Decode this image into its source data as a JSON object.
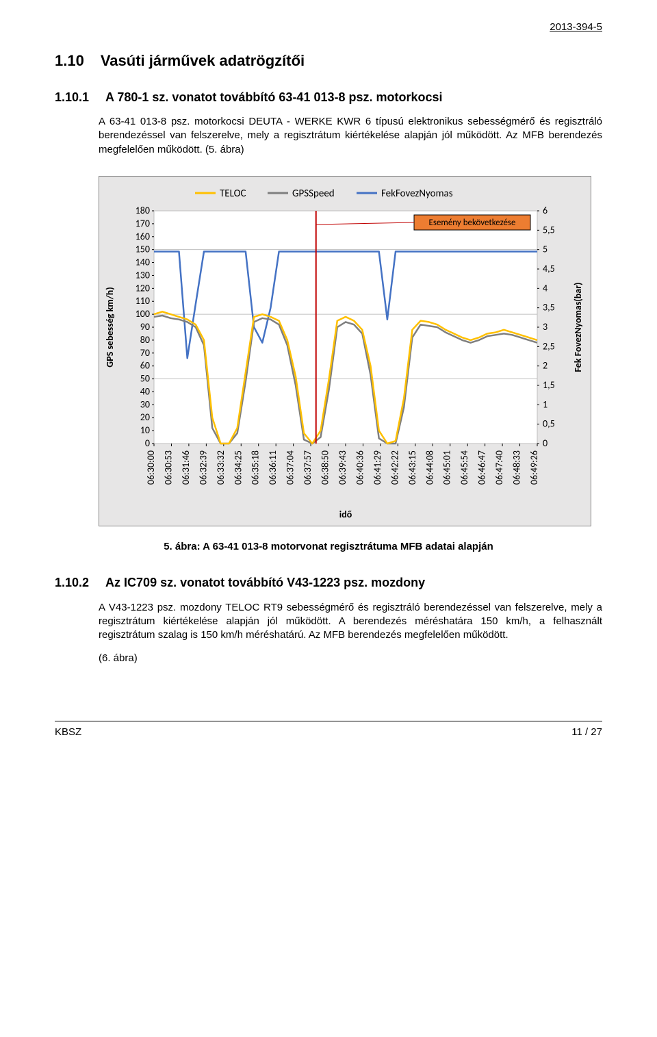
{
  "doc_id": "2013-394-5",
  "section_1_10": {
    "number": "1.10",
    "title": "Vasúti járművek adatrögzítői"
  },
  "section_1_10_1": {
    "number": "1.10.1",
    "title": "A 780-1 sz. vonatot továbbító 63-41 013-8 psz. motorkocsi",
    "body": "A 63-41 013-8 psz. motorkocsi DEUTA - WERKE KWR 6 típusú elektronikus sebességmérő és regisztráló berendezéssel van felszerelve, mely a regisztrátum kiértékelése alapján jól működött. Az MFB berendezés megfelelően működött. (5. ábra)"
  },
  "chart": {
    "bg_color": "#e7e6e6",
    "plot_bg": "#ffffff",
    "grid_color": "#bfbfbf",
    "border_color": "#888888",
    "font_color": "#000000",
    "legend": {
      "teloc": {
        "label": "TELOC",
        "color": "#ffc000"
      },
      "gps": {
        "label": "GPSSpeed",
        "color": "#7f7f7f"
      },
      "fek": {
        "label": "FekFovezNyomas",
        "color": "#4472c4"
      }
    },
    "event_label": "Esemény bekövetkezése",
    "event_box": {
      "bg": "#ed7d31",
      "border": "#000000",
      "text": "#000000"
    },
    "event_line_color": "#c00000",
    "y_left": {
      "label": "GPS sebesség km/h)",
      "min": 0,
      "max": 180,
      "step": 10,
      "ticks": [
        0,
        10,
        20,
        30,
        40,
        50,
        60,
        70,
        80,
        90,
        100,
        110,
        120,
        130,
        140,
        150,
        160,
        170,
        180
      ]
    },
    "y_right": {
      "label": "Fek FovezNyomas(bar)",
      "min": 0,
      "max": 6,
      "step": 0.5,
      "ticks": [
        "0",
        "0,5",
        "1",
        "1,5",
        "2",
        "2,5",
        "3",
        "3,5",
        "4",
        "4,5",
        "5",
        "5,5",
        "6"
      ]
    },
    "x": {
      "label": "idő",
      "ticks": [
        "06:30:00",
        "06:30:53",
        "06:31:46",
        "06:32:39",
        "06:33:32",
        "06:34:25",
        "06:35:18",
        "06:36:11",
        "06:37:04",
        "06:37:57",
        "06:38:50",
        "06:39:43",
        "06:40:36",
        "06:41:29",
        "06:42:22",
        "06:43:15",
        "06:44:08",
        "06:45:01",
        "06:45:54",
        "06:46:47",
        "06:47:40",
        "06:48:33",
        "06:49:26"
      ]
    },
    "event_x_index": 9.3,
    "series": {
      "teloc": [
        100,
        102,
        100,
        98,
        96,
        92,
        80,
        20,
        0,
        0,
        12,
        55,
        98,
        100,
        98,
        95,
        80,
        52,
        8,
        0,
        10,
        50,
        95,
        98,
        95,
        88,
        60,
        10,
        0,
        2,
        35,
        88,
        95,
        94,
        92,
        88,
        85,
        82,
        80,
        82,
        85,
        86,
        88,
        86,
        84,
        82,
        80
      ],
      "gps": [
        98,
        99,
        97,
        96,
        94,
        90,
        76,
        12,
        0,
        0,
        8,
        48,
        94,
        97,
        96,
        92,
        76,
        45,
        3,
        0,
        5,
        42,
        90,
        94,
        92,
        85,
        53,
        4,
        0,
        0,
        28,
        82,
        92,
        91,
        90,
        86,
        83,
        80,
        78,
        80,
        83,
        84,
        85,
        84,
        82,
        80,
        78
      ],
      "fek": [
        4.95,
        4.95,
        4.95,
        4.95,
        2.2,
        3.6,
        4.95,
        4.95,
        4.95,
        4.95,
        4.95,
        4.95,
        3.0,
        2.6,
        3.5,
        4.95,
        4.95,
        4.95,
        4.95,
        4.95,
        4.95,
        4.95,
        4.95,
        4.95,
        4.95,
        4.95,
        4.95,
        4.95,
        3.2,
        4.95,
        4.95,
        4.95,
        4.95,
        4.95,
        4.95,
        4.95,
        4.95,
        4.95,
        4.95,
        4.95,
        4.95,
        4.95,
        4.95,
        4.95,
        4.95,
        4.95,
        4.95
      ]
    },
    "line_width": {
      "teloc": 2.5,
      "gps": 2.5,
      "fek": 2.5,
      "event": 2
    },
    "label_fontsize": 14,
    "tick_fontsize": 14,
    "legend_fontsize": 15
  },
  "fig5_caption": "5. ábra: A 63-41 013-8 motorvonat regisztrátuma MFB adatai alapján",
  "section_1_10_2": {
    "number": "1.10.2",
    "title": "Az IC709 sz. vonatot továbbító V43-1223 psz. mozdony",
    "body": "A V43-1223 psz. mozdony TELOC RT9 sebességmérő és regisztráló berendezéssel van felszerelve, mely a regisztrátum kiértékelése alapján jól működött. A berendezés méréshatára 150 km/h, a felhasznált regisztrátum szalag is 150 km/h méréshatárú. Az MFB berendezés megfelelően működött.",
    "body2": "(6. ábra)"
  },
  "footer": {
    "left": "KBSZ",
    "right": "11 / 27"
  }
}
